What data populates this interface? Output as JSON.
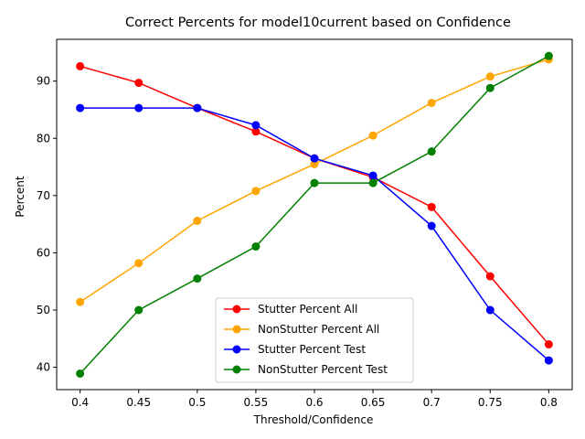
{
  "chart_data": {
    "type": "line",
    "title": "Correct Percents for model10current based on Confidence",
    "xlabel": "Threshold/Confidence",
    "ylabel": "Percent",
    "x": [
      "0.4",
      "0.45",
      "0.5",
      "0.55",
      "0.6",
      "0.65",
      "0.7",
      "0.75",
      "0.8"
    ],
    "yticks": [
      "40",
      "50",
      "60",
      "70",
      "80",
      "90"
    ],
    "ylim": [
      36.1,
      97.3
    ],
    "grid": false,
    "legend_position": "lower center",
    "series": [
      {
        "name": "Stutter Percent All",
        "color": "#ff0000",
        "values": [
          92.6,
          89.7,
          85.3,
          81.2,
          76.5,
          73.2,
          68.0,
          55.9,
          44.0
        ]
      },
      {
        "name": "NonStutter Percent All",
        "color": "#ffa500",
        "values": [
          51.4,
          58.2,
          65.6,
          70.8,
          75.5,
          80.5,
          86.2,
          90.8,
          93.8
        ]
      },
      {
        "name": "Stutter Percent Test",
        "color": "#0000ff",
        "values": [
          85.3,
          85.3,
          85.3,
          82.3,
          76.5,
          73.5,
          64.7,
          50.0,
          41.2
        ]
      },
      {
        "name": "NonStutter Percent Test",
        "color": "#008000",
        "values": [
          38.9,
          50.0,
          55.5,
          61.1,
          72.2,
          72.2,
          77.7,
          88.8,
          94.4
        ]
      }
    ]
  }
}
